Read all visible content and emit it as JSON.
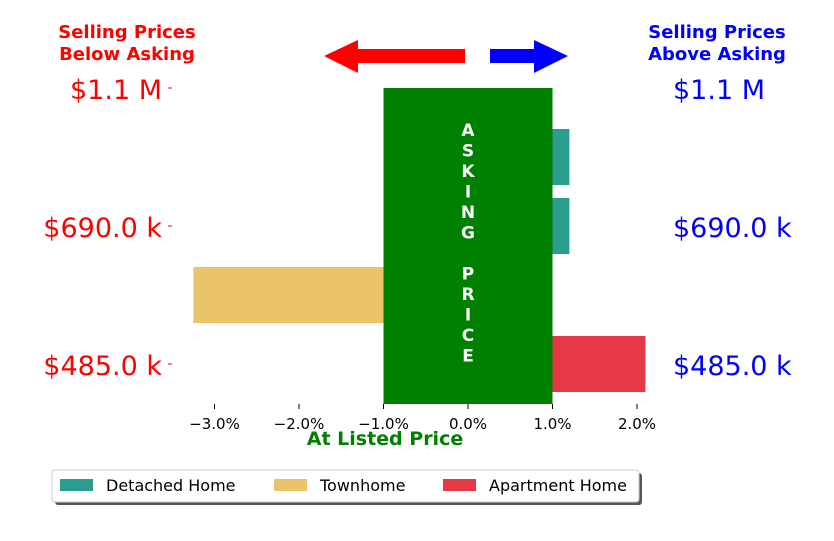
{
  "header": {
    "left_line1": "Selling Prices",
    "left_line2": "Below Asking",
    "right_line1": "Selling Prices",
    "right_line2": "Above Asking",
    "below_color": "#ff0000",
    "above_color": "#0000ff"
  },
  "price_labels": {
    "left": [
      "$1.1 M",
      "$690.0 k",
      "$485.0 k"
    ],
    "right": [
      "$1.1 M",
      "$690.0 k",
      "$485.0 k"
    ]
  },
  "asking_band": {
    "letters": [
      "A",
      "S",
      "K",
      "I",
      "N",
      "G",
      "",
      "P",
      "R",
      "I",
      "C",
      "E"
    ],
    "color": "#008000",
    "x_range": [
      -1.0,
      1.0
    ]
  },
  "chart_data": {
    "type": "bar",
    "orientation": "horizontal",
    "title": "",
    "xlabel": "At Listed Price",
    "xlabel_color": "#008000",
    "ylabel": "",
    "xlim": [
      -3.5,
      2.3
    ],
    "xticks": [
      -3.0,
      -2.0,
      -1.0,
      0.0,
      1.0,
      2.0
    ],
    "xtick_labels": [
      "−3.0%",
      "−2.0%",
      "−1.0%",
      "0.0%",
      "1.0%",
      "2.0%"
    ],
    "bars": [
      {
        "series": "Detached Home",
        "value": 1.2,
        "row": 0
      },
      {
        "series": "Detached Home",
        "value": 1.2,
        "row": 1
      },
      {
        "series": "Townhome",
        "value": -3.25,
        "row": 2
      },
      {
        "series": "Apartment Home",
        "value": 2.1,
        "row": 3
      }
    ],
    "series": [
      {
        "name": "Detached Home",
        "color": "#2a9d8f"
      },
      {
        "name": "Townhome",
        "color": "#e9c46a"
      },
      {
        "name": "Apartment Home",
        "color": "#e63946"
      }
    ],
    "legend_position": "bottom",
    "grid": false
  }
}
